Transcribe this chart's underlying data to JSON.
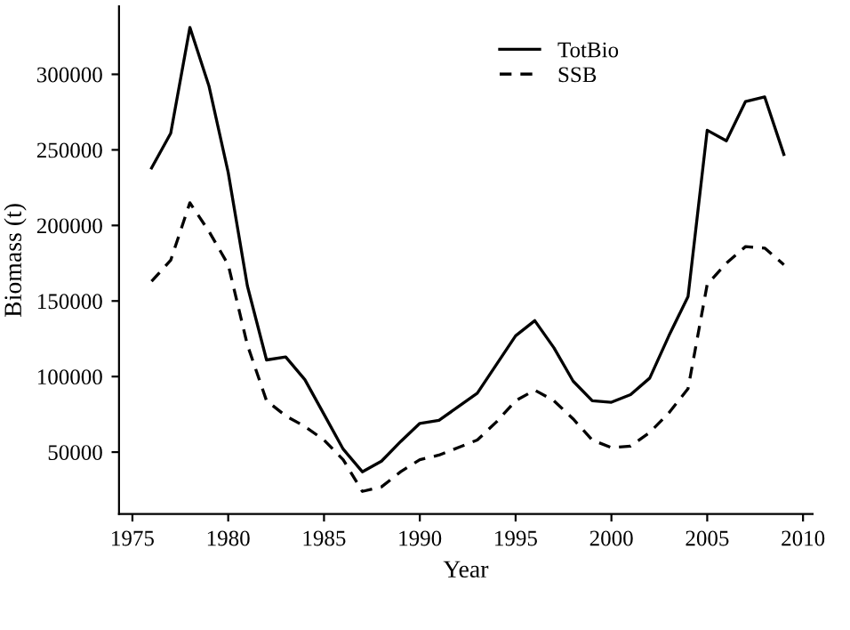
{
  "chart_data": {
    "type": "line",
    "xlabel": "Year",
    "ylabel": "Biomass (t)",
    "x": [
      1976,
      1977,
      1978,
      1979,
      1980,
      1981,
      1982,
      1983,
      1984,
      1985,
      1986,
      1987,
      1988,
      1989,
      1990,
      1991,
      1992,
      1993,
      1994,
      1995,
      1996,
      1997,
      1998,
      1999,
      2000,
      2001,
      2002,
      2003,
      2004,
      2005,
      2006,
      2007,
      2008,
      2009
    ],
    "series": [
      {
        "name": "TotBio",
        "color": "#000000",
        "line_style": "solid",
        "values": [
          238000,
          261000,
          331000,
          292000,
          235000,
          160000,
          111000,
          113000,
          98000,
          75000,
          52000,
          37000,
          44000,
          57000,
          69000,
          71000,
          80000,
          89000,
          108000,
          127000,
          137000,
          119000,
          97000,
          84000,
          83000,
          88000,
          99000,
          127000,
          153000,
          263000,
          256000,
          282000,
          285000,
          247000
        ]
      },
      {
        "name": "SSB",
        "color": "#000000",
        "line_style": "dashed",
        "values": [
          163000,
          177000,
          215000,
          196000,
          174000,
          121000,
          84000,
          74000,
          67000,
          58000,
          45000,
          24000,
          27000,
          37000,
          45000,
          48000,
          53000,
          58000,
          70000,
          84000,
          91000,
          84000,
          72000,
          58000,
          53000,
          54000,
          63000,
          76000,
          92000,
          161000,
          175000,
          186000,
          185000,
          174000
        ]
      }
    ],
    "xlim": [
      1974.3,
      2010.5
    ],
    "xticks": [
      1975,
      1980,
      1985,
      1990,
      1995,
      2000,
      2005,
      2010
    ],
    "ylim": [
      9000,
      345000
    ],
    "yticks": [
      50000,
      100000,
      150000,
      200000,
      250000,
      300000
    ],
    "grid": false,
    "legend": "top"
  }
}
